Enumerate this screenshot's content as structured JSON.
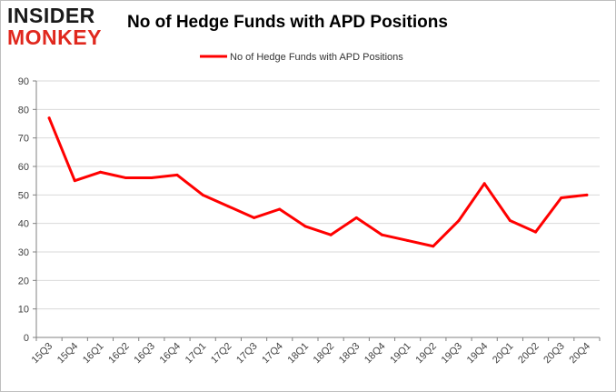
{
  "branding": {
    "logo_top": "INSIDER",
    "logo_bottom": "MONKEY",
    "logo_top_color": "#1a1a1a",
    "logo_bottom_color": "#e0281e"
  },
  "chart_data": {
    "type": "line",
    "title": "No of Hedge Funds with APD Positions",
    "categories": [
      "15Q3",
      "15Q4",
      "16Q1",
      "16Q2",
      "16Q3",
      "16Q4",
      "17Q1",
      "17Q2",
      "17Q3",
      "17Q4",
      "18Q1",
      "18Q2",
      "18Q3",
      "18Q4",
      "19Q1",
      "19Q2",
      "19Q3",
      "19Q4",
      "20Q1",
      "20Q2",
      "20Q3",
      "20Q4"
    ],
    "series": [
      {
        "name": "No of Hedge Funds with APD Positions",
        "color": "#ff0000",
        "values": [
          77,
          55,
          58,
          56,
          56,
          57,
          50,
          46,
          42,
          45,
          39,
          36,
          42,
          36,
          34,
          32,
          41,
          54,
          41,
          37,
          49,
          50
        ]
      }
    ],
    "yticks": [
      "0",
      "10",
      "20",
      "30",
      "40",
      "50",
      "60",
      "70",
      "80",
      "90"
    ],
    "ylim": [
      0,
      90
    ],
    "xlabel": "",
    "ylabel": "",
    "grid": true,
    "legend_position": "top-center"
  }
}
